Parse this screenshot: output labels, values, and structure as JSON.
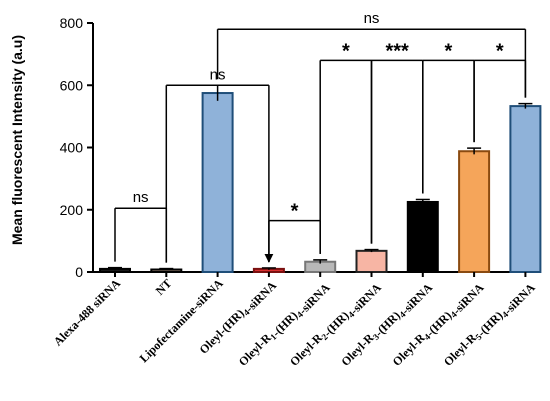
{
  "chart_data": {
    "type": "bar",
    "ylabel": "Mean fluorescent Intensity (a.u)",
    "ylim": [
      0,
      800
    ],
    "yticks": [
      0,
      200,
      400,
      600,
      800
    ],
    "categories": [
      "Alexa-488 siRNA",
      "NT",
      "Lipofectamine-siRNA",
      "Oleyl-(HR)4-siRNA",
      "Oleyl-R1-(HR)4-siRNA",
      "Oleyl-R2-(HR)4-siRNA",
      "Oleyl-R3-(HR)4-siRNA",
      "Oleyl-R4-(HR)4-siRNA",
      "Oleyl-R5-(HR)4-siRNA"
    ],
    "values": [
      10,
      8,
      575,
      10,
      33,
      68,
      225,
      388,
      533
    ],
    "errors": [
      4,
      3,
      25,
      3,
      6,
      4,
      8,
      10,
      8
    ],
    "colors": {
      "fills": [
        "#1a1a1a",
        "#a38c7a",
        "#8fb2d9",
        "#d93030",
        "#b8b8b8",
        "#f7b5a4",
        "#000000",
        "#f5a55a",
        "#8fb2d9"
      ],
      "strokes": [
        "#000000",
        "#000000",
        "#1f4e79",
        "#7a1010",
        "#777777",
        "#222222",
        "#000000",
        "#8a4a10",
        "#1f4e79"
      ]
    },
    "significance": [
      {
        "from": 0,
        "to": 1,
        "label": "ns",
        "level": 205
      },
      {
        "from": 3,
        "to": 4,
        "label": "*",
        "level": 165
      },
      {
        "from": 4,
        "to": 5,
        "label": "*",
        "level": 680
      },
      {
        "from": 5,
        "to": 6,
        "label": "***",
        "level": 680
      },
      {
        "from": 6,
        "to": 7,
        "label": "*",
        "level": 680
      },
      {
        "from": 7,
        "to": 8,
        "label": "*",
        "level": 680
      },
      {
        "from": 1,
        "to": 3,
        "label": "ns",
        "level": 600,
        "arrow_to": 3
      },
      {
        "from": 2,
        "to": 8,
        "label": "ns",
        "level": 780
      }
    ]
  }
}
